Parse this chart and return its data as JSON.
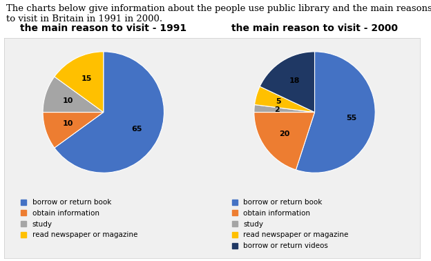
{
  "header_line1": "The charts below give information about the people use public library and the main reasons",
  "header_line2": "to visit in Britain in 1991 in 2000.",
  "chart1_title": "the main reason to visit - 1991",
  "chart2_title": "the main reason to visit - 2000",
  "labels1": [
    "borrow or return book",
    "obtain information",
    "study",
    "read newspaper or magazine"
  ],
  "labels2": [
    "borrow or return book",
    "obtain information",
    "study",
    "read newspaper or magazine",
    "borrow or return videos"
  ],
  "values1": [
    65,
    10,
    10,
    15
  ],
  "values2": [
    55,
    20,
    2,
    5,
    18
  ],
  "colors1": [
    "#4472C4",
    "#ED7D31",
    "#A5A5A5",
    "#FFC000"
  ],
  "colors2": [
    "#4472C4",
    "#ED7D31",
    "#A5A5A5",
    "#FFC000",
    "#1F3864"
  ],
  "startangle1": 90,
  "startangle2": 90,
  "bg_color": "#FFFFFF",
  "panel_bg": "#F0F0F0",
  "header_fontsize": 9.5,
  "title_fontsize": 10,
  "legend_fontsize": 7.5,
  "label_fontsize": 8
}
